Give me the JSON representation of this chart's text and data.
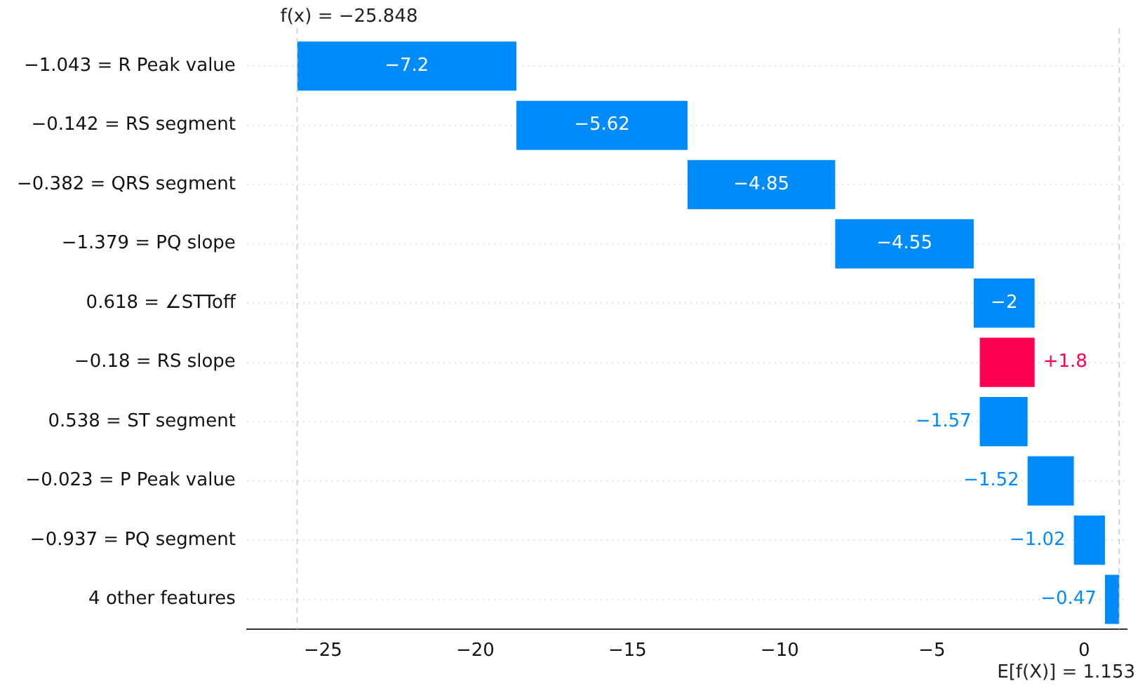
{
  "chart_data": {
    "type": "bar",
    "orientation": "horizontal",
    "categories": [
      "−1.043 = R Peak value",
      "−0.142 = RS segment",
      "−0.382 = QRS segment",
      "−1.379 = PQ slope",
      "0.618 = ∠STToff",
      "−0.18 = RS slope",
      "0.538 = ST segment",
      "−0.023 = P Peak value",
      "−0.937 = PQ segment",
      "4 other features"
    ],
    "values": [
      -7.2,
      -5.62,
      -4.85,
      -4.55,
      -2,
      1.8,
      -1.57,
      -1.52,
      -1.02,
      -0.47
    ],
    "base": [
      -18.647,
      -13.027,
      -8.177,
      -3.627,
      -1.627,
      -3.427,
      -1.857,
      -0.337,
      0.683,
      1.153
    ],
    "colors": [
      "#008bfb",
      "#008bfb",
      "#008bfb",
      "#008bfb",
      "#008bfb",
      "#ff0051",
      "#008bfb",
      "#008bfb",
      "#008bfb",
      "#008bfb"
    ],
    "value_labels": [
      "−7.2",
      "−5.62",
      "−4.85",
      "−4.55",
      "−2",
      "+1.8",
      "−1.57",
      "−1.52",
      "−1.02",
      "−0.47"
    ],
    "xlim": [
      -27.5,
      1.4
    ],
    "xticks": [
      {
        "value": -25,
        "label": "−25"
      },
      {
        "value": -20,
        "label": "−20"
      },
      {
        "value": -15,
        "label": "−15"
      },
      {
        "value": -10,
        "label": "−10"
      },
      {
        "value": -5,
        "label": "−5"
      },
      0
    ],
    "ref_lines": [
      {
        "axis": "x",
        "value": -25.848,
        "label": "f(x) = −25.848",
        "color": "#cccccc",
        "line_style": "dashed"
      },
      {
        "axis": "x",
        "value": 1.153,
        "label": "E[f(X)] = 1.153",
        "color": "#cccccc",
        "line_style": "dashed"
      }
    ],
    "grid": "y"
  }
}
